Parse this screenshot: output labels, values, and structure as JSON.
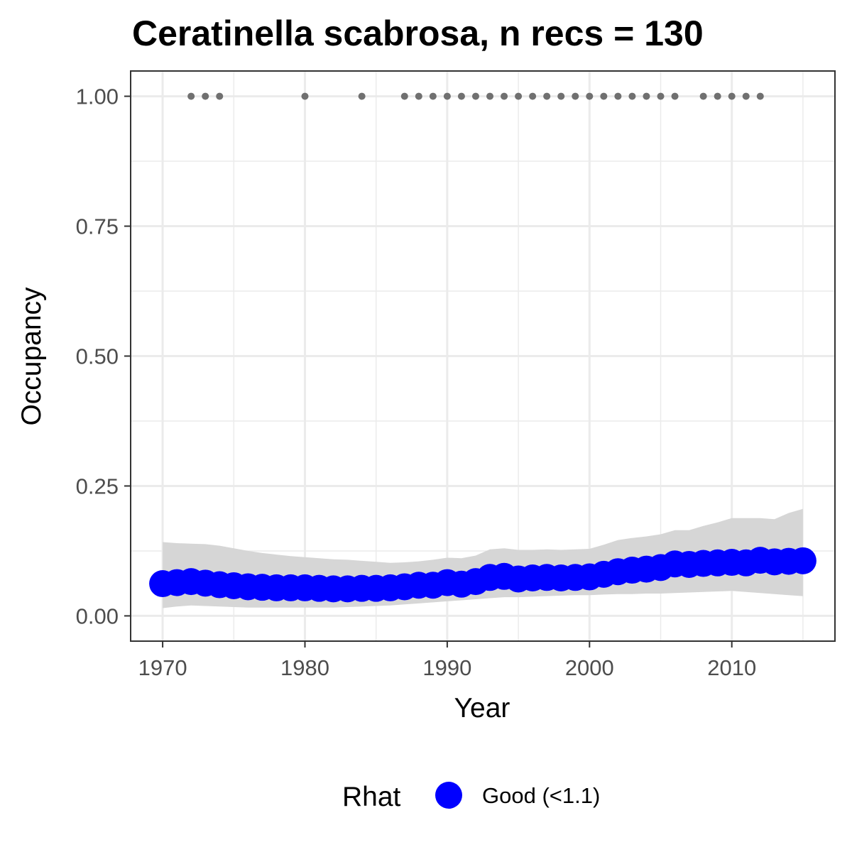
{
  "chart_data": {
    "type": "line",
    "title": "Ceratinella scabrosa, n recs = 130",
    "xlabel": "Year",
    "ylabel": "Occupancy",
    "xlim": [
      1967.8,
      1917.2
    ],
    "ylim": [
      -0.0486,
      1.0486
    ],
    "x_ticks": [
      1970,
      1980,
      1990,
      2000,
      2010
    ],
    "x_tick_labels": [
      "1970",
      "1980",
      "1990",
      "2000",
      "2010"
    ],
    "y_ticks": [
      0,
      0.25,
      0.5,
      0.75,
      1.0
    ],
    "y_tick_labels": [
      "0.00",
      "0.25",
      "0.50",
      "0.75",
      "1.00"
    ],
    "grid": true,
    "legend_position": "bottom",
    "legend": {
      "title": "Rhat",
      "label": "Good (<1.1)"
    },
    "colors": {
      "point": "#0000ff",
      "ribbon": "#d6d6d6",
      "records": "#707070",
      "grid": "#ebebeb",
      "border": "#333333"
    },
    "series": [
      {
        "name": "Good (<1.1)",
        "x": [
          1970,
          1971,
          1972,
          1973,
          1974,
          1975,
          1976,
          1977,
          1978,
          1979,
          1980,
          1981,
          1982,
          1983,
          1984,
          1985,
          1986,
          1987,
          1988,
          1989,
          1990,
          1991,
          1992,
          1993,
          1994,
          1995,
          1996,
          1997,
          1998,
          1999,
          2000,
          2001,
          2002,
          2003,
          2004,
          2005,
          2006,
          2007,
          2008,
          2009,
          2010,
          2011,
          2012,
          2013,
          2014,
          2015
        ],
        "y": [
          0.062,
          0.064,
          0.066,
          0.063,
          0.06,
          0.058,
          0.056,
          0.055,
          0.054,
          0.054,
          0.054,
          0.053,
          0.052,
          0.052,
          0.053,
          0.053,
          0.054,
          0.056,
          0.059,
          0.059,
          0.064,
          0.061,
          0.066,
          0.074,
          0.076,
          0.071,
          0.073,
          0.074,
          0.073,
          0.074,
          0.075,
          0.08,
          0.085,
          0.088,
          0.09,
          0.093,
          0.1,
          0.099,
          0.101,
          0.102,
          0.103,
          0.102,
          0.107,
          0.104,
          0.105,
          0.106
        ],
        "lower": [
          0.015,
          0.018,
          0.02,
          0.019,
          0.018,
          0.017,
          0.016,
          0.016,
          0.016,
          0.016,
          0.016,
          0.016,
          0.016,
          0.017,
          0.018,
          0.019,
          0.02,
          0.022,
          0.024,
          0.026,
          0.028,
          0.03,
          0.032,
          0.034,
          0.036,
          0.036,
          0.037,
          0.038,
          0.039,
          0.04,
          0.04,
          0.041,
          0.042,
          0.042,
          0.043,
          0.043,
          0.044,
          0.045,
          0.046,
          0.047,
          0.048,
          0.046,
          0.044,
          0.042,
          0.04,
          0.038
        ],
        "upper": [
          0.142,
          0.14,
          0.139,
          0.138,
          0.135,
          0.13,
          0.125,
          0.121,
          0.118,
          0.115,
          0.113,
          0.111,
          0.109,
          0.108,
          0.106,
          0.104,
          0.102,
          0.103,
          0.105,
          0.108,
          0.112,
          0.111,
          0.116,
          0.128,
          0.13,
          0.127,
          0.127,
          0.128,
          0.127,
          0.128,
          0.129,
          0.137,
          0.146,
          0.15,
          0.153,
          0.157,
          0.165,
          0.165,
          0.173,
          0.18,
          0.188,
          0.188,
          0.188,
          0.186,
          0.198,
          0.206
        ]
      }
    ],
    "records": {
      "y": 1.0,
      "x": [
        1972,
        1973,
        1974,
        1980,
        1984,
        1987,
        1988,
        1989,
        1990,
        1991,
        1992,
        1993,
        1994,
        1995,
        1996,
        1997,
        1998,
        1999,
        2000,
        2001,
        2002,
        2003,
        2004,
        2005,
        2006,
        2008,
        2009,
        2010,
        2011,
        2012
      ]
    }
  }
}
